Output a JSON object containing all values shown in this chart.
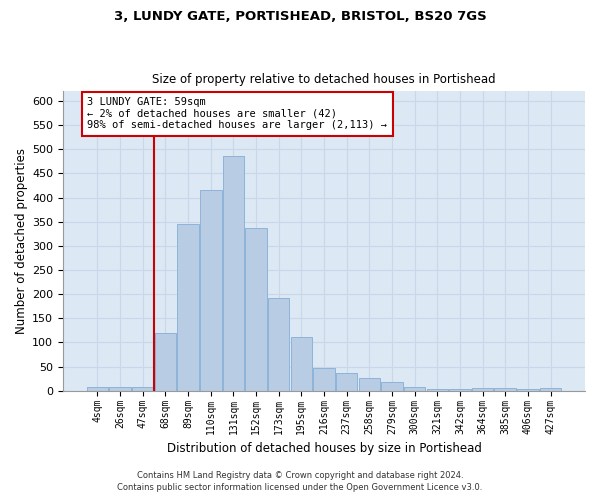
{
  "title1": "3, LUNDY GATE, PORTISHEAD, BRISTOL, BS20 7GS",
  "title2": "Size of property relative to detached houses in Portishead",
  "xlabel": "Distribution of detached houses by size in Portishead",
  "ylabel": "Number of detached properties",
  "categories": [
    "4sqm",
    "26sqm",
    "47sqm",
    "68sqm",
    "89sqm",
    "110sqm",
    "131sqm",
    "152sqm",
    "173sqm",
    "195sqm",
    "216sqm",
    "237sqm",
    "258sqm",
    "279sqm",
    "300sqm",
    "321sqm",
    "342sqm",
    "364sqm",
    "385sqm",
    "406sqm",
    "427sqm"
  ],
  "values": [
    7,
    7,
    7,
    120,
    345,
    415,
    487,
    338,
    192,
    112,
    48,
    37,
    27,
    19,
    8,
    3,
    3,
    5,
    5,
    3,
    5
  ],
  "bar_color": "#b8cce4",
  "bar_edgecolor": "#8db4d9",
  "vline_idx": 3,
  "vline_color": "#cc0000",
  "annotation_text": "3 LUNDY GATE: 59sqm\n← 2% of detached houses are smaller (42)\n98% of semi-detached houses are larger (2,113) →",
  "annotation_box_edgecolor": "#cc0000",
  "ylim": [
    0,
    620
  ],
  "yticks": [
    0,
    50,
    100,
    150,
    200,
    250,
    300,
    350,
    400,
    450,
    500,
    550,
    600
  ],
  "grid_color": "#c8d8ea",
  "bg_color": "#dce8f4",
  "footer1": "Contains HM Land Registry data © Crown copyright and database right 2024.",
  "footer2": "Contains public sector information licensed under the Open Government Licence v3.0."
}
